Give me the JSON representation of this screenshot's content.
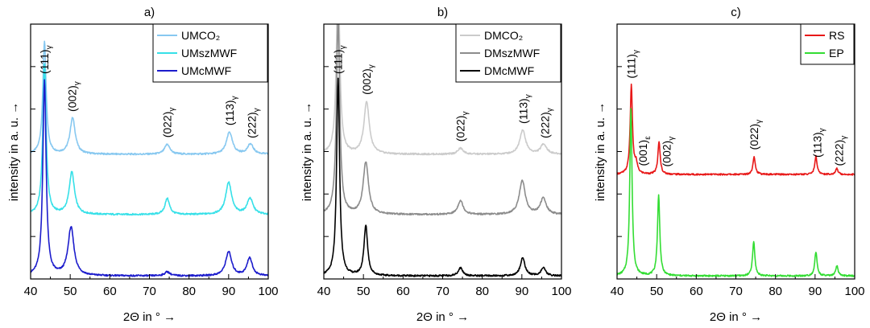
{
  "chart_data": [
    {
      "panel_label": "a)",
      "type": "line",
      "xlabel": "2Θ in ° →",
      "ylabel": "intensity in a. u. →",
      "xlim": [
        40,
        100
      ],
      "xticks": [
        "40",
        "50",
        "60",
        "70",
        "80",
        "90",
        "100"
      ],
      "y_tick_labels": "none",
      "legend_position": "top-right",
      "series": [
        {
          "name": "UMCO₂",
          "color": "#87c8f0",
          "baseline": 0.62,
          "peaks": [
            [
              43.5,
              0.56,
              0.5
            ],
            [
              50.6,
              0.18,
              0.8
            ],
            [
              74.5,
              0.05,
              0.8
            ],
            [
              90.2,
              0.11,
              0.9
            ],
            [
              95.5,
              0.05,
              0.9
            ]
          ]
        },
        {
          "name": "UMszMWF",
          "color": "#36e0e8",
          "baseline": 0.32,
          "peaks": [
            [
              43.5,
              0.75,
              0.5
            ],
            [
              50.4,
              0.21,
              0.8
            ],
            [
              74.5,
              0.08,
              0.7
            ],
            [
              90.0,
              0.16,
              0.9
            ],
            [
              95.4,
              0.08,
              0.9
            ]
          ]
        },
        {
          "name": "UMcMWF",
          "color": "#1c1ccc",
          "baseline": 0.015,
          "peaks": [
            [
              43.5,
              0.97,
              0.5
            ],
            [
              50.2,
              0.24,
              0.9
            ],
            [
              74.5,
              0.02,
              0.8
            ],
            [
              90.0,
              0.12,
              0.9
            ],
            [
              95.3,
              0.09,
              0.8
            ]
          ]
        }
      ],
      "peak_labels": [
        {
          "text": "(111)γ",
          "x": 43.5
        },
        {
          "text": "(002)γ",
          "x": 50.5
        },
        {
          "text": "(022)γ",
          "x": 74.5
        },
        {
          "text": "(113)γ",
          "x": 90.2
        },
        {
          "text": "(222)γ",
          "x": 95.8
        }
      ]
    },
    {
      "panel_label": "b)",
      "type": "line",
      "xlabel": "2Θ in ° →",
      "ylabel": "intensity in a. u. →",
      "xlim": [
        40,
        100
      ],
      "xticks": [
        "40",
        "50",
        "60",
        "70",
        "80",
        "90",
        "100"
      ],
      "y_tick_labels": "none",
      "legend_position": "top-right",
      "series": [
        {
          "name": "DMCO₂",
          "color": "#cbcbcb",
          "baseline": 0.62,
          "peaks": [
            [
              43.6,
              0.9,
              0.5
            ],
            [
              50.8,
              0.26,
              0.8
            ],
            [
              74.5,
              0.03,
              0.8
            ],
            [
              90.2,
              0.12,
              0.9
            ],
            [
              95.5,
              0.05,
              0.9
            ]
          ]
        },
        {
          "name": "DMszMWF",
          "color": "#8c8c8c",
          "baseline": 0.32,
          "peaks": [
            [
              43.6,
              0.97,
              0.5
            ],
            [
              50.6,
              0.26,
              0.8
            ],
            [
              74.5,
              0.07,
              0.8
            ],
            [
              90.1,
              0.17,
              0.9
            ],
            [
              95.4,
              0.08,
              0.9
            ]
          ]
        },
        {
          "name": "DMcMWF",
          "color": "#000000",
          "baseline": 0.015,
          "peaks": [
            [
              43.6,
              0.98,
              0.45
            ],
            [
              50.6,
              0.25,
              0.55
            ],
            [
              74.5,
              0.04,
              0.7
            ],
            [
              90.2,
              0.09,
              0.7
            ],
            [
              95.4,
              0.04,
              0.7
            ]
          ]
        }
      ],
      "peak_labels": [
        {
          "text": "(111)γ",
          "x": 43.6
        },
        {
          "text": "(002)γ",
          "x": 50.8
        },
        {
          "text": "(022)γ",
          "x": 74.5
        },
        {
          "text": "(113)γ",
          "x": 90.3
        },
        {
          "text": "(222)γ",
          "x": 95.8
        }
      ]
    },
    {
      "panel_label": "c)",
      "type": "line",
      "xlabel": "2Θ in ° →",
      "ylabel": "intensity in a. u. →",
      "xlim": [
        40,
        100
      ],
      "xticks": [
        "40",
        "50",
        "60",
        "70",
        "80",
        "90",
        "100"
      ],
      "y_tick_labels": "none",
      "legend_position": "top-right",
      "series": [
        {
          "name": "RS",
          "color": "#e81818",
          "baseline": 0.52,
          "peaks": [
            [
              43.6,
              0.44,
              0.35
            ],
            [
              44.8,
              0.05,
              0.4
            ],
            [
              50.6,
              0.16,
              0.35
            ],
            [
              74.6,
              0.09,
              0.35
            ],
            [
              90.2,
              0.09,
              0.35
            ],
            [
              95.5,
              0.03,
              0.35
            ]
          ]
        },
        {
          "name": "EP",
          "color": "#33dd33",
          "baseline": 0.015,
          "peaks": [
            [
              43.5,
              0.83,
              0.35
            ],
            [
              50.5,
              0.4,
              0.35
            ],
            [
              74.5,
              0.17,
              0.35
            ],
            [
              90.2,
              0.12,
              0.35
            ],
            [
              95.5,
              0.05,
              0.35
            ]
          ]
        }
      ],
      "peak_labels": [
        {
          "text": "(111)γ",
          "x": 43.6
        },
        {
          "text": "(001)ε",
          "x": 46.5
        },
        {
          "text": "(002)γ",
          "x": 52.5
        },
        {
          "text": "(022)γ",
          "x": 74.6
        },
        {
          "text": "(113)γ",
          "x": 90.5
        },
        {
          "text": "(222)γ",
          "x": 96.0
        }
      ]
    }
  ]
}
